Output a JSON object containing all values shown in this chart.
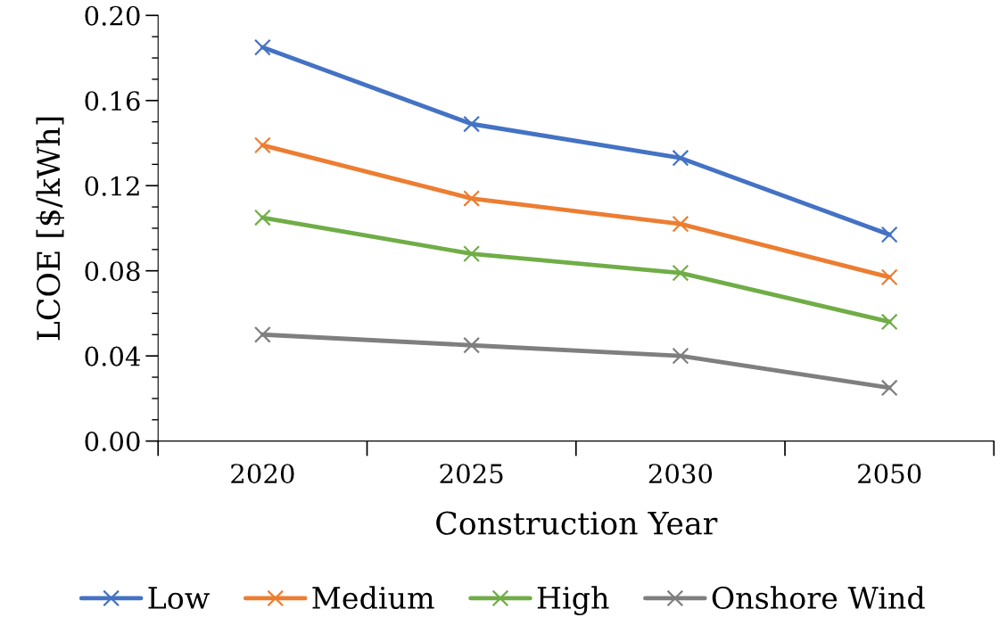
{
  "chart_data": {
    "type": "line",
    "xlabel": "Construction Year",
    "ylabel": "LCOE [$/kWh]",
    "categories": [
      "2020",
      "2025",
      "2030",
      "2050"
    ],
    "series": [
      {
        "name": "Low",
        "color": "#4472c4",
        "values": [
          0.185,
          0.149,
          0.133,
          0.097
        ]
      },
      {
        "name": "Medium",
        "color": "#ed7d31",
        "values": [
          0.139,
          0.114,
          0.102,
          0.077
        ]
      },
      {
        "name": "High",
        "color": "#70ad47",
        "values": [
          0.105,
          0.088,
          0.079,
          0.056
        ]
      },
      {
        "name": "Onshore Wind",
        "color": "#7f7f7f",
        "values": [
          0.05,
          0.045,
          0.04,
          0.025
        ]
      }
    ],
    "ylim": [
      0,
      0.2
    ],
    "yticks": [
      {
        "value": 0,
        "label": "0.00"
      },
      {
        "value": 0.04,
        "label": "0.04"
      },
      {
        "value": 0.08,
        "label": "0.08"
      },
      {
        "value": 0.12,
        "label": "0.12"
      },
      {
        "value": 0.16,
        "label": "0.16"
      },
      {
        "value": 0.2,
        "label": "0.20"
      }
    ],
    "grid": false,
    "legend": "bottom",
    "marker": "cross",
    "line_style": "solid"
  }
}
